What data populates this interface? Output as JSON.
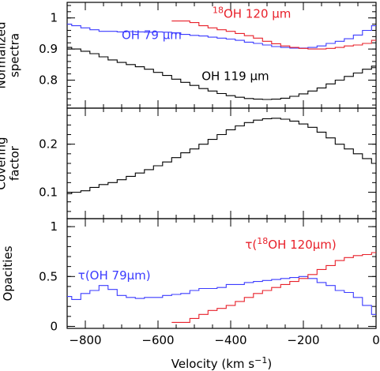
{
  "chart_data": [
    {
      "type": "line",
      "panel": "top",
      "ylabel_lines": [
        "Normalized",
        "spectra"
      ],
      "xlim": [
        -850,
        0
      ],
      "ylim": [
        0.71,
        1.05
      ],
      "yticks": [
        0.8,
        0.9,
        1
      ],
      "yticklabels": [
        "0.8",
        "0.9",
        "1"
      ],
      "series": [
        {
          "name": "OH 79 μm",
          "color": "#3b3bff",
          "x": [
            -850,
            -825,
            -800,
            -775,
            -750,
            -725,
            -700,
            -675,
            -650,
            -625,
            -600,
            -575,
            -550,
            -525,
            -500,
            -475,
            -450,
            -425,
            -400,
            -375,
            -350,
            -325,
            -300,
            -275,
            -250,
            -225,
            -200,
            -175,
            -150,
            -125,
            -100,
            -75,
            -50,
            -25,
            0
          ],
          "values": [
            0.98,
            0.975,
            0.968,
            0.962,
            0.957,
            0.957,
            0.955,
            0.956,
            0.955,
            0.954,
            0.955,
            0.954,
            0.952,
            0.947,
            0.944,
            0.942,
            0.938,
            0.935,
            0.932,
            0.928,
            0.922,
            0.918,
            0.913,
            0.908,
            0.905,
            0.903,
            0.903,
            0.905,
            0.91,
            0.918,
            0.925,
            0.933,
            0.945,
            0.96,
            0.975
          ]
        },
        {
          "name": "18OH 120 μm",
          "color": "#e8202a",
          "x": [
            -550,
            -525,
            -500,
            -475,
            -450,
            -425,
            -400,
            -375,
            -350,
            -325,
            -300,
            -275,
            -250,
            -225,
            -200,
            -175,
            -150,
            -125,
            -100,
            -75,
            -50,
            -25,
            0
          ],
          "values": [
            0.99,
            0.99,
            0.985,
            0.975,
            0.968,
            0.962,
            0.957,
            0.95,
            0.943,
            0.935,
            0.925,
            0.917,
            0.91,
            0.905,
            0.902,
            0.9,
            0.9,
            0.902,
            0.905,
            0.91,
            0.913,
            0.918,
            0.928
          ]
        },
        {
          "name": "OH 119 μm",
          "color": "#000000",
          "x": [
            -850,
            -825,
            -800,
            -775,
            -750,
            -725,
            -700,
            -675,
            -650,
            -625,
            -600,
            -575,
            -550,
            -525,
            -500,
            -475,
            -450,
            -425,
            -400,
            -375,
            -350,
            -325,
            -300,
            -275,
            -250,
            -225,
            -200,
            -175,
            -150,
            -125,
            -100,
            -75,
            -50,
            -25,
            0
          ],
          "values": [
            0.905,
            0.9,
            0.893,
            0.885,
            0.875,
            0.865,
            0.857,
            0.85,
            0.843,
            0.835,
            0.825,
            0.815,
            0.803,
            0.793,
            0.783,
            0.773,
            0.765,
            0.757,
            0.75,
            0.745,
            0.741,
            0.739,
            0.738,
            0.739,
            0.742,
            0.748,
            0.756,
            0.765,
            0.775,
            0.788,
            0.8,
            0.812,
            0.823,
            0.835,
            0.845
          ]
        }
      ],
      "annotations": [
        {
          "text": "OH 79 μm",
          "color": "#3b3bff",
          "x": -700,
          "y": 0.932
        },
        {
          "text_sup": "18",
          "text": "OH 120 μm",
          "color": "#e8202a",
          "x": -450,
          "y": 1.0
        },
        {
          "text": "OH 119 μm",
          "color": "#000000",
          "x": -480,
          "y": 0.8
        }
      ]
    },
    {
      "type": "line",
      "panel": "middle",
      "ylabel_lines": [
        "Covering",
        "factor"
      ],
      "xlim": [
        -850,
        0
      ],
      "ylim": [
        0.045,
        0.275
      ],
      "yticks": [
        0.1,
        0.2
      ],
      "yticklabels": [
        "0.1",
        "0.2"
      ],
      "series": [
        {
          "name": "Covering factor",
          "color": "#000000",
          "x": [
            -850,
            -825,
            -800,
            -775,
            -750,
            -725,
            -700,
            -675,
            -650,
            -625,
            -600,
            -575,
            -550,
            -525,
            -500,
            -475,
            -450,
            -425,
            -400,
            -375,
            -350,
            -325,
            -300,
            -275,
            -250,
            -225,
            -200,
            -175,
            -150,
            -125,
            -100,
            -75,
            -50,
            -25,
            0
          ],
          "values": [
            0.097,
            0.1,
            0.103,
            0.11,
            0.116,
            0.12,
            0.126,
            0.133,
            0.14,
            0.147,
            0.155,
            0.163,
            0.172,
            0.182,
            0.19,
            0.2,
            0.21,
            0.22,
            0.23,
            0.238,
            0.245,
            0.25,
            0.253,
            0.254,
            0.252,
            0.248,
            0.242,
            0.235,
            0.225,
            0.213,
            0.2,
            0.19,
            0.18,
            0.17,
            0.16
          ]
        }
      ]
    },
    {
      "type": "line",
      "panel": "bottom",
      "ylabel_lines": [
        "Opacities"
      ],
      "xlim": [
        -850,
        0
      ],
      "ylim": [
        -0.02,
        1.08
      ],
      "yticks": [
        0,
        0.5,
        1
      ],
      "yticklabels": [
        "0",
        "0.5",
        "1"
      ],
      "xticks": [
        -800,
        -600,
        -400,
        -200,
        0
      ],
      "xticklabels": [
        "−800",
        "−600",
        "−400",
        "−200",
        "0"
      ],
      "xlabel": "Velocity (km s",
      "xlabel_sup": "−1",
      "xlabel_end": ")",
      "series": [
        {
          "name": "τ(OH 79μm)",
          "color": "#3b3bff",
          "x": [
            -850,
            -825,
            -800,
            -775,
            -750,
            -725,
            -700,
            -675,
            -650,
            -625,
            -600,
            -575,
            -550,
            -525,
            -500,
            -475,
            -450,
            -425,
            -400,
            -375,
            -350,
            -325,
            -300,
            -275,
            -250,
            -225,
            -200,
            -175,
            -150,
            -125,
            -100,
            -75,
            -50,
            -25,
            0
          ],
          "values": [
            0.3,
            0.27,
            0.33,
            0.36,
            0.41,
            0.37,
            0.31,
            0.29,
            0.28,
            0.29,
            0.29,
            0.31,
            0.32,
            0.33,
            0.36,
            0.38,
            0.38,
            0.39,
            0.42,
            0.42,
            0.44,
            0.45,
            0.46,
            0.47,
            0.48,
            0.49,
            0.5,
            0.48,
            0.44,
            0.41,
            0.36,
            0.34,
            0.29,
            0.21,
            0.12
          ]
        },
        {
          "name": "τ(18OH 120μm)",
          "color": "#e8202a",
          "x": [
            -550,
            -525,
            -500,
            -475,
            -450,
            -425,
            -400,
            -375,
            -350,
            -325,
            -300,
            -275,
            -250,
            -225,
            -200,
            -175,
            -150,
            -125,
            -100,
            -75,
            -50,
            -25,
            0
          ],
          "values": [
            0.04,
            0.04,
            0.08,
            0.12,
            0.16,
            0.18,
            0.21,
            0.25,
            0.29,
            0.33,
            0.36,
            0.39,
            0.42,
            0.45,
            0.48,
            0.52,
            0.57,
            0.61,
            0.66,
            0.69,
            0.71,
            0.72,
            0.74
          ]
        }
      ],
      "annotations": [
        {
          "text": "τ(OH 79μm)",
          "color": "#3b3bff",
          "x": -820,
          "y": 0.47
        },
        {
          "text": "τ(",
          "text_sup": "18",
          "text_end": "OH 120μm)",
          "color": "#e8202a",
          "x": -360,
          "y": 0.78
        }
      ]
    }
  ]
}
